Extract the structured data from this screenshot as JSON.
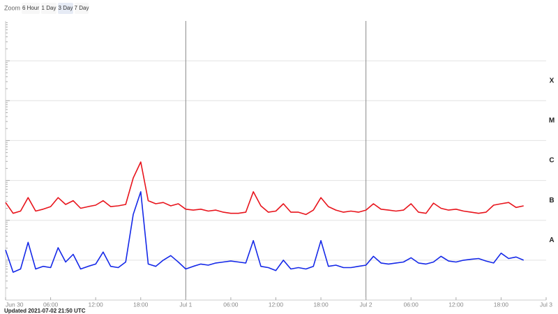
{
  "zoom": {
    "label": "Zoom",
    "buttons": [
      "6 Hour",
      "1 Day",
      "3 Day",
      "7 Day"
    ],
    "selected": 2
  },
  "updated": "Updated 2021-07-02 21:50 UTC",
  "chart_data": {
    "type": "line",
    "log_scale": true,
    "grid": true,
    "xlim": [
      0,
      72
    ],
    "xticks": [
      {
        "value": 0,
        "label": "Jun 30"
      },
      {
        "value": 6,
        "label": "06:00"
      },
      {
        "value": 12,
        "label": "12:00"
      },
      {
        "value": 18,
        "label": "18:00"
      },
      {
        "value": 24,
        "label": "Jul 1"
      },
      {
        "value": 30,
        "label": "06:00"
      },
      {
        "value": 36,
        "label": "12:00"
      },
      {
        "value": 42,
        "label": "18:00"
      },
      {
        "value": 48,
        "label": "Jul 2"
      },
      {
        "value": 54,
        "label": "06:00"
      },
      {
        "value": 60,
        "label": "12:00"
      },
      {
        "value": 66,
        "label": "18:00"
      },
      {
        "value": 72,
        "label": "Jul 3"
      }
    ],
    "day_lines": [
      24,
      48
    ],
    "ylim": [
      1e-09,
      0.01
    ],
    "ygrid": [
      1e-08,
      1e-07,
      1e-06,
      1e-05,
      0.0001,
      0.001
    ],
    "bands": [
      {
        "label": "A",
        "from": 1e-08,
        "to": 1e-07
      },
      {
        "label": "B",
        "from": 1e-07,
        "to": 1e-06
      },
      {
        "label": "C",
        "from": 1e-06,
        "to": 1e-05
      },
      {
        "label": "M",
        "from": 1e-05,
        "to": 0.0001
      },
      {
        "label": "X",
        "from": 0.0001,
        "to": 0.001
      }
    ],
    "x": [
      0,
      1,
      2,
      3,
      4,
      5,
      6,
      7,
      8,
      9,
      10,
      11,
      12,
      13,
      14,
      15,
      16,
      17,
      18,
      19,
      20,
      21,
      22,
      23,
      24,
      25,
      26,
      27,
      28,
      29,
      30,
      31,
      32,
      33,
      34,
      35,
      36,
      37,
      38,
      39,
      40,
      41,
      42,
      43,
      44,
      45,
      46,
      47,
      48,
      49,
      50,
      51,
      52,
      53,
      54,
      55,
      56,
      57,
      58,
      59,
      60,
      61,
      62,
      63,
      64,
      65,
      66,
      67,
      68,
      69
    ],
    "series": [
      {
        "color": "#e8141c",
        "values": [
          2.8e-07,
          1.5e-07,
          1.7e-07,
          3.7e-07,
          1.7e-07,
          1.9e-07,
          2.2e-07,
          3.7e-07,
          2.5e-07,
          3.1e-07,
          2e-07,
          2.2e-07,
          2.4e-07,
          3.1e-07,
          2.2e-07,
          2.3e-07,
          2.5e-07,
          1.15e-06,
          2.9e-06,
          3.1e-07,
          2.6e-07,
          2.8e-07,
          2.3e-07,
          2.6e-07,
          1.9e-07,
          1.8e-07,
          1.9e-07,
          1.7e-07,
          1.8e-07,
          1.6e-07,
          1.5e-07,
          1.5e-07,
          1.6e-07,
          5.2e-07,
          2.3e-07,
          1.6e-07,
          1.7e-07,
          2.6e-07,
          1.6e-07,
          1.6e-07,
          1.4e-07,
          1.8e-07,
          3.7e-07,
          2.2e-07,
          1.8e-07,
          1.6e-07,
          1.7e-07,
          1.6e-07,
          1.8e-07,
          2.6e-07,
          1.9e-07,
          1.8e-07,
          1.7e-07,
          1.8e-07,
          2.6e-07,
          1.6e-07,
          1.5e-07,
          2.7e-07,
          2e-07,
          1.8e-07,
          1.9e-07,
          1.7e-07,
          1.6e-07,
          1.5e-07,
          1.6e-07,
          2.4e-07,
          2.6e-07,
          2.8e-07,
          2.1e-07,
          2.3e-07
        ]
      },
      {
        "color": "#1428e8",
        "values": [
          1.8e-08,
          5e-09,
          6e-09,
          2.8e-08,
          6e-09,
          7e-09,
          6.5e-09,
          2.05e-08,
          9e-09,
          1.4e-08,
          6e-09,
          7e-09,
          8e-09,
          1.6e-08,
          7e-09,
          6.5e-09,
          9e-09,
          1.4e-07,
          5.2e-07,
          8e-09,
          7e-09,
          1e-08,
          1.3e-08,
          9e-09,
          6e-09,
          7e-09,
          8e-09,
          7.5e-09,
          8.5e-09,
          9e-09,
          9.5e-09,
          9e-09,
          8.5e-09,
          3.1e-08,
          7e-09,
          6.5e-09,
          5.5e-09,
          1e-08,
          6e-09,
          6.5e-09,
          6e-09,
          7e-09,
          3.1e-08,
          7e-09,
          7.5e-09,
          6.5e-09,
          6.5e-09,
          7e-09,
          7.5e-09,
          1.25e-08,
          8.5e-09,
          8e-09,
          8.5e-09,
          9e-09,
          1.15e-08,
          8.5e-09,
          8e-09,
          9e-09,
          1.25e-08,
          9.5e-09,
          9e-09,
          1e-08,
          1.05e-08,
          1.1e-08,
          9.5e-09,
          8.5e-09,
          1.5e-08,
          1.1e-08,
          1.2e-08,
          1e-08
        ]
      }
    ]
  }
}
